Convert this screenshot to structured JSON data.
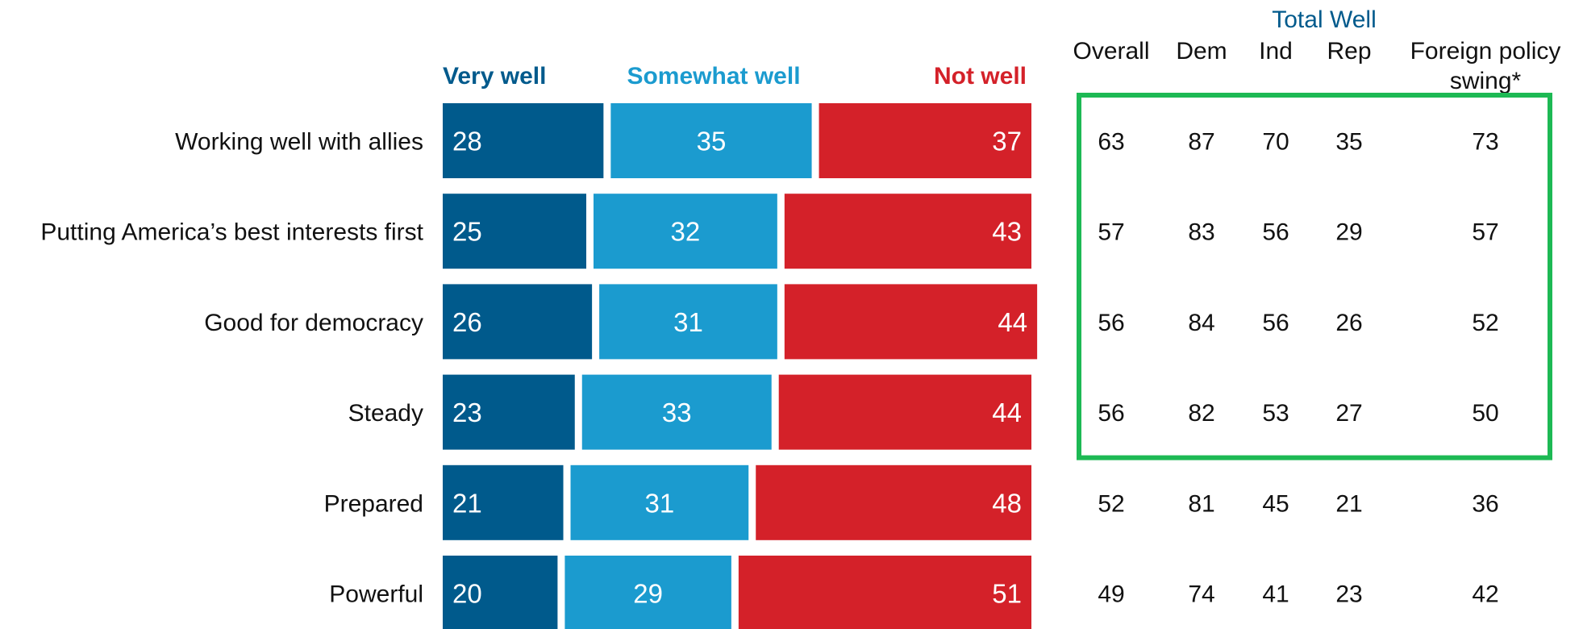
{
  "chart_data": {
    "type": "bar",
    "stacked": true,
    "orientation": "horizontal",
    "legend": [
      "Very well",
      "Somewhat well",
      "Not well"
    ],
    "categories": [
      "Working well with allies",
      "Putting America’s best interests first",
      "Good for democracy",
      "Steady",
      "Prepared",
      "Powerful"
    ],
    "series": [
      {
        "name": "Very well",
        "color": "#005A8C",
        "values": [
          28,
          25,
          26,
          23,
          21,
          20
        ]
      },
      {
        "name": "Somewhat well",
        "color": "#1B9BCF",
        "values": [
          35,
          32,
          31,
          33,
          31,
          29
        ]
      },
      {
        "name": "Not well",
        "color": "#D42129",
        "values": [
          37,
          43,
          44,
          44,
          48,
          51
        ]
      }
    ],
    "table": {
      "group_title": "Total Well",
      "columns": [
        "Overall",
        "Dem",
        "Ind",
        "Rep",
        "Foreign policy swing*"
      ],
      "header_lines": [
        [
          "Overall"
        ],
        [
          "Dem"
        ],
        [
          "Ind"
        ],
        [
          "Rep"
        ],
        [
          "Foreign policy",
          "swing*"
        ]
      ],
      "rows": [
        [
          63,
          87,
          70,
          35,
          73
        ],
        [
          57,
          83,
          56,
          29,
          57
        ],
        [
          56,
          84,
          56,
          26,
          52
        ],
        [
          56,
          82,
          53,
          27,
          50
        ],
        [
          52,
          81,
          45,
          21,
          36
        ],
        [
          49,
          74,
          41,
          23,
          42
        ]
      ],
      "highlighted_rows": [
        0,
        1,
        2,
        3
      ],
      "highlight_color": "#1DB954"
    },
    "header_colors": {
      "very_well": "#005A8C",
      "somewhat_well": "#1B9BCF",
      "not_well": "#D42129",
      "total_well": "#005A8C"
    }
  }
}
